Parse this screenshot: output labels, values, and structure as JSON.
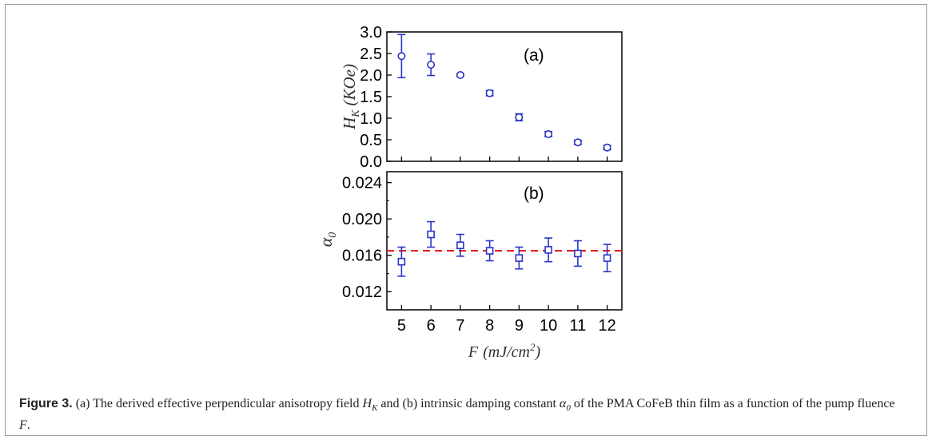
{
  "chart_data": [
    {
      "type": "scatter",
      "panel_label": "(a)",
      "ylabel": "H_K (KOe)",
      "ylabel_main": "H",
      "ylabel_sub": "K",
      "ylabel_unit": "(KOe)",
      "ylim": [
        0,
        3.0
      ],
      "yticks": [
        "0.0",
        "0.5",
        "1.0",
        "1.5",
        "2.0",
        "2.5",
        "3.0"
      ],
      "xlim": [
        4.5,
        12.5
      ],
      "series": [
        {
          "marker": "circle",
          "color": "#2b35c8",
          "x": [
            5,
            6,
            7,
            8,
            9,
            10,
            11,
            12
          ],
          "y": [
            2.44,
            2.24,
            2.0,
            1.58,
            1.02,
            0.63,
            0.44,
            0.32
          ],
          "err": [
            0.5,
            0.25,
            0.03,
            0.06,
            0.08,
            0.06,
            0.05,
            0.05
          ]
        }
      ]
    },
    {
      "type": "scatter",
      "panel_label": "(b)",
      "ylabel": "α0",
      "ylabel_main": "α",
      "ylabel_sub": "0",
      "ylim": [
        0.01,
        0.0252
      ],
      "yticks": [
        "0.012",
        "0.016",
        "0.020",
        "0.024"
      ],
      "xlim": [
        4.5,
        12.5
      ],
      "xticks": [
        "5",
        "6",
        "7",
        "8",
        "9",
        "10",
        "11",
        "12"
      ],
      "xlabel": "F (mJ/cm²)",
      "xlabel_main": "F",
      "xlabel_unit": "(mJ/cm",
      "xlabel_sup": "2",
      "xlabel_close": ")",
      "reference_line": {
        "y": 0.0165,
        "color": "#e02020",
        "style": "dashed"
      },
      "series": [
        {
          "marker": "square",
          "color": "#2b35c8",
          "x": [
            5,
            6,
            7,
            8,
            9,
            10,
            11,
            12
          ],
          "y": [
            0.0153,
            0.0183,
            0.0171,
            0.0165,
            0.0157,
            0.0166,
            0.0162,
            0.0157
          ],
          "err": [
            0.0016,
            0.0014,
            0.0012,
            0.0011,
            0.0012,
            0.0013,
            0.0014,
            0.0015
          ]
        }
      ]
    }
  ],
  "caption": {
    "label": "Figure 3.",
    "t1": " (a) The derived effective perpendicular anisotropy field ",
    "sym1": "H",
    "sym1_sub": "K",
    "t2": " and (b) intrinsic damping constant ",
    "sym2": "α",
    "sym2_sub": "0",
    "t3": " of the PMA CoFeB thin film as a function of the pump fluence ",
    "sym3": "F",
    "t4": "."
  }
}
